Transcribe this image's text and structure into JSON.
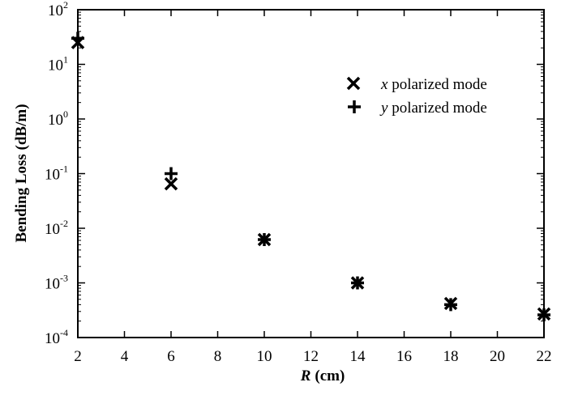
{
  "chart_data": {
    "type": "scatter",
    "title": "",
    "xlabel": "R",
    "xlabel_unit": "(cm)",
    "ylabel": "Bending Loss (dB/m)",
    "xlim": [
      2,
      22
    ],
    "ylim": [
      0.0001,
      100
    ],
    "yscale": "log",
    "grid": false,
    "legend_position": "top-right",
    "x_ticks": [
      2,
      4,
      6,
      8,
      10,
      12,
      14,
      16,
      18,
      20,
      22
    ],
    "y_ticks": [
      {
        "base": "10",
        "exp": "-4"
      },
      {
        "base": "10",
        "exp": "-3"
      },
      {
        "base": "10",
        "exp": "-2"
      },
      {
        "base": "10",
        "exp": "-1"
      },
      {
        "base": "10",
        "exp": "0"
      },
      {
        "base": "10",
        "exp": "1"
      },
      {
        "base": "10",
        "exp": "2"
      }
    ],
    "series": [
      {
        "name_var": "x",
        "name_rest": " polarized mode",
        "marker": "x",
        "x": [
          2,
          6,
          10,
          14,
          18,
          22
        ],
        "y": [
          25,
          0.065,
          0.0062,
          0.001,
          0.00042,
          0.00027
        ]
      },
      {
        "name_var": "y",
        "name_rest": " polarized mode",
        "marker": "plus",
        "x": [
          2,
          6,
          10,
          14,
          18,
          22
        ],
        "y": [
          30,
          0.1,
          0.0062,
          0.001,
          0.0004,
          0.00026
        ]
      }
    ]
  }
}
